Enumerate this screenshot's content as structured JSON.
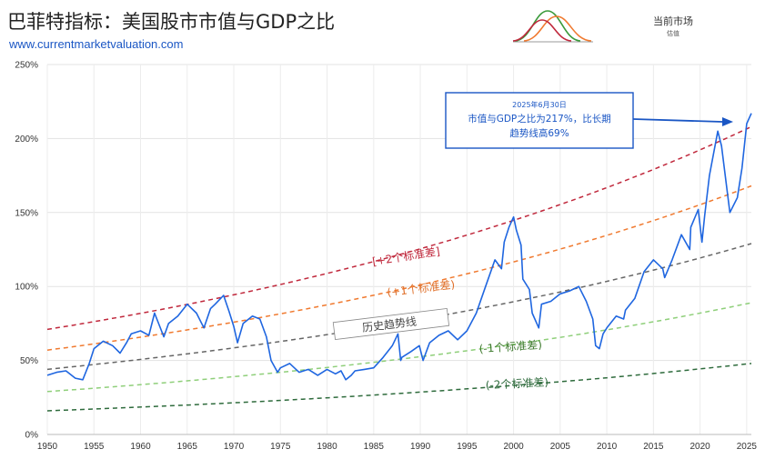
{
  "header": {
    "title": "巴菲特指标：美国股市市值与GDP之比",
    "subtitle": "www.currentmarketvaluation.com"
  },
  "brand": {
    "name": "当前市场",
    "tagline": "估值"
  },
  "colors": {
    "series": "#1f66e0",
    "plus2": "#c0283c",
    "plus1": "#f07a30",
    "trend": "#666666",
    "minus1": "#8fcf7a",
    "minus2": "#2e6b3c",
    "callout": "#1a56c4"
  },
  "chart_data": {
    "type": "line",
    "title": "巴菲特指标：美国股市市值与GDP之比",
    "xlabel": "",
    "ylabel": "",
    "xlim": [
      1950,
      2025.5
    ],
    "ylim": [
      0,
      250
    ],
    "x_ticks": [
      "1950",
      "1955",
      "1960",
      "1965",
      "1970",
      "1975",
      "1980",
      "1985",
      "1990",
      "1995",
      "2000",
      "2005",
      "2010",
      "2015",
      "2020",
      "2025"
    ],
    "y_ticks": [
      "0%",
      "50%",
      "100%",
      "150%",
      "200%",
      "250%"
    ],
    "grid": true,
    "series": [
      {
        "key": "ratio",
        "style": "solid",
        "x": [
          1950,
          1951,
          1952,
          1953,
          1953.8,
          1954.5,
          1955,
          1956,
          1957,
          1957.8,
          1958.5,
          1959,
          1960,
          1960.9,
          1961.5,
          1962,
          1962.5,
          1963,
          1964,
          1965,
          1966,
          1966.8,
          1967.5,
          1968,
          1968.9,
          1969.5,
          1970,
          1970.4,
          1971,
          1972,
          1972.8,
          1973.5,
          1974,
          1974.7,
          1975,
          1976,
          1977,
          1978,
          1979,
          1980,
          1980.9,
          1981.5,
          1982,
          1982.6,
          1983,
          1984,
          1985,
          1986,
          1987,
          1987.6,
          1987.9,
          1988,
          1989,
          1989.9,
          1990.3,
          1991,
          1992,
          1993,
          1994,
          1995,
          1996,
          1997,
          1998,
          1998.7,
          1999,
          1999.5,
          2000,
          2000.3,
          2000.8,
          2001,
          2001.7,
          2002,
          2002.7,
          2003,
          2004,
          2005,
          2006,
          2007,
          2007.8,
          2008.5,
          2008.8,
          2009.2,
          2009.6,
          2010,
          2011,
          2011.8,
          2012,
          2013,
          2014,
          2015,
          2016,
          2016.2,
          2017,
          2018,
          2018.9,
          2019,
          2019.8,
          2020.2,
          2020.5,
          2021,
          2021.9,
          2022.3,
          2022.9,
          2023.2,
          2024,
          2024.5,
          2025,
          2025.5
        ],
        "y": [
          40,
          42,
          43,
          38,
          37,
          48,
          58,
          63,
          60,
          55,
          62,
          68,
          70,
          67,
          82,
          74,
          66,
          75,
          80,
          88,
          82,
          72,
          85,
          88,
          94,
          83,
          73,
          62,
          75,
          80,
          78,
          66,
          50,
          42,
          45,
          48,
          42,
          44,
          40,
          44,
          41,
          43,
          37,
          40,
          43,
          44,
          45,
          52,
          60,
          68,
          50,
          52,
          56,
          60,
          50,
          62,
          67,
          70,
          64,
          70,
          82,
          100,
          118,
          112,
          130,
          140,
          147,
          138,
          128,
          105,
          98,
          82,
          72,
          88,
          90,
          95,
          97,
          100,
          90,
          78,
          60,
          58,
          68,
          72,
          80,
          78,
          84,
          92,
          110,
          118,
          112,
          106,
          118,
          135,
          125,
          140,
          152,
          130,
          148,
          175,
          205,
          195,
          165,
          150,
          160,
          180,
          210,
          217
        ]
      }
    ],
    "bands": [
      {
        "key": "plus2",
        "label": "[+2个标准差]",
        "x": [
          1950,
          2025.5
        ],
        "y": [
          71,
          208
        ]
      },
      {
        "key": "plus1",
        "label": "(+1个标准差)",
        "x": [
          1950,
          2025.5
        ],
        "y": [
          57,
          168
        ]
      },
      {
        "key": "trend",
        "label": "历史趋势线",
        "x": [
          1950,
          2025.5
        ],
        "y": [
          44,
          129
        ]
      },
      {
        "key": "minus1",
        "label": "(-1个标准差)",
        "x": [
          1950,
          2025.5
        ],
        "y": [
          29,
          89
        ]
      },
      {
        "key": "minus2",
        "label": "(-2个标准差)",
        "x": [
          1950,
          2025.5
        ],
        "y": [
          16,
          48
        ]
      }
    ],
    "annotation": {
      "date": "2025年6月30日",
      "line1": "市值与GDP之比为217%，比长期",
      "line2": "趋势线高69%",
      "target_x": 2024.2,
      "target_y": 210
    }
  }
}
